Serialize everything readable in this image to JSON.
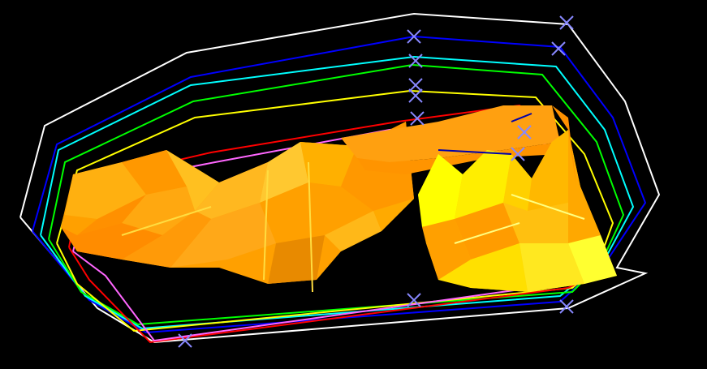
{
  "scene": {
    "background": "#000000",
    "contour_colors": [
      "#ffffff",
      "#0000ff",
      "#00ffff",
      "#00ff00",
      "#ffff00",
      "#ff0000",
      "#ff66ff"
    ],
    "marker_color": "#8888ff",
    "marker_symbol": "x-marker-icon",
    "surface_colors": {
      "main": "#ffa000",
      "light": "#ffc020",
      "dark": "#e07000",
      "highlight": "#ffff00"
    }
  }
}
